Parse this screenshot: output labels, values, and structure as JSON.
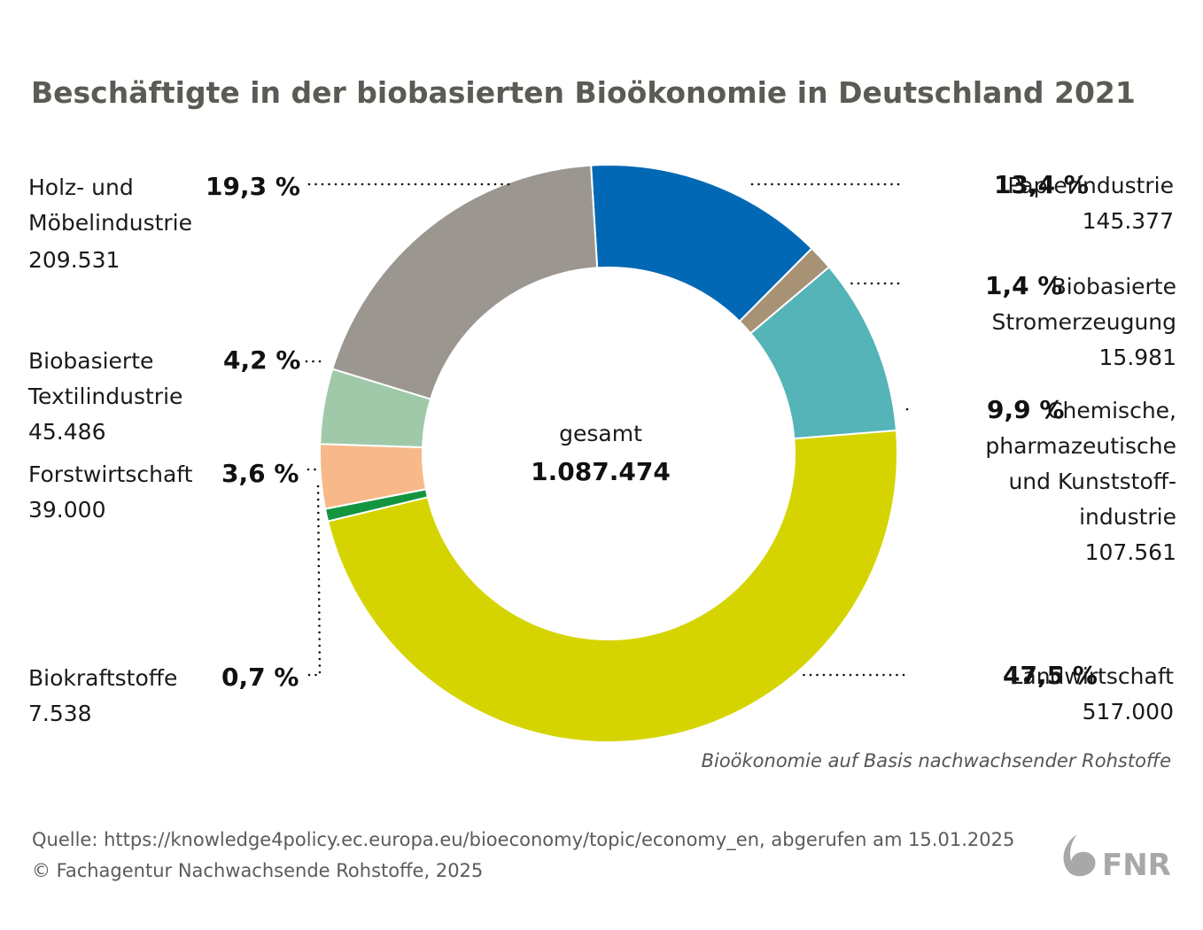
{
  "chart_data": {
    "type": "pie",
    "variant": "donut",
    "title": "Beschäftigte in der biobasierten Bioökonomie in Deutschland 2021",
    "subtitle": "Bioökonomie auf Basis nachwachsender Rohstoffe",
    "center": {
      "label": "gesamt",
      "value": "1.087.474"
    },
    "slices": [
      {
        "key": "papier",
        "label_lines": [
          "Papierindustrie"
        ],
        "value_text": "145.377",
        "value": 145377,
        "percent": 13.4,
        "percent_text": "13,4 %",
        "color": "#0068b4"
      },
      {
        "key": "strom",
        "label_lines": [
          "Biobasierte",
          "Stromerzeugung"
        ],
        "value_text": "15.981",
        "value": 15981,
        "percent": 1.4,
        "percent_text": "1,4 %",
        "color": "#a89276"
      },
      {
        "key": "chemie",
        "label_lines": [
          "Chemische,",
          "pharmazeutische",
          "und Kunststoff-",
          "industrie"
        ],
        "value_text": "107.561",
        "value": 107561,
        "percent": 9.9,
        "percent_text": "9,9 %",
        "color": "#54b4b8"
      },
      {
        "key": "landw",
        "label_lines": [
          "Landwirtschaft"
        ],
        "value_text": "517.000",
        "value": 517000,
        "percent": 47.5,
        "percent_text": "47,5 %",
        "color": "#d6d400"
      },
      {
        "key": "biokraft",
        "label_lines": [
          "Biokraftstoffe"
        ],
        "value_text": "7.538",
        "value": 7538,
        "percent": 0.7,
        "percent_text": "0,7 %",
        "color": "#139540"
      },
      {
        "key": "forst",
        "label_lines": [
          "Forstwirtschaft"
        ],
        "value_text": "39.000",
        "value": 39000,
        "percent": 3.6,
        "percent_text": "3,6 %",
        "color": "#f7b98a"
      },
      {
        "key": "textil",
        "label_lines": [
          "Biobasierte",
          "Textilindustrie"
        ],
        "value_text": "45.486",
        "value": 45486,
        "percent": 4.2,
        "percent_text": "4,2 %",
        "color": "#9fc9a8"
      },
      {
        "key": "holz",
        "label_lines": [
          "Holz- und",
          "Möbelindustrie"
        ],
        "value_text": "209.531",
        "value": 209531,
        "percent": 19.3,
        "percent_text": "19,3 %",
        "color": "#9b9790"
      }
    ]
  },
  "footer": {
    "source": "Quelle: https://knowledge4policy.ec.europa.eu/bioeconomy/topic/economy_en, abgerufen am 15.01.2025",
    "copyright": "© Fachagentur Nachwachsende Rohstoffe, 2025"
  },
  "logo": {
    "text": "FNR"
  }
}
